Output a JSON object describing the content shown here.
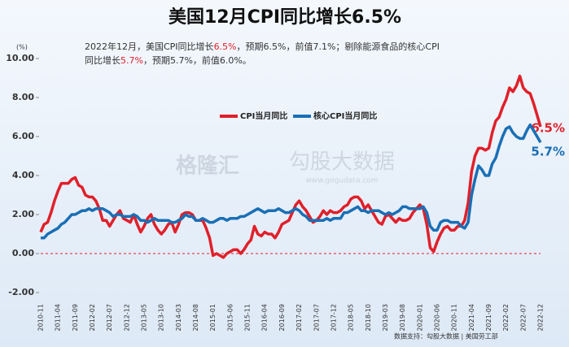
{
  "chart_data": {
    "type": "line",
    "title": "美国12月CPI同比增长6.5%",
    "annotation": [
      [
        {
          "text": "2022年12月，美国CPI同比增长"
        },
        {
          "text": "6.5%",
          "color": "#e0202a"
        },
        {
          "text": "，预期6.5%，前值7.1%；剔除能源食品的核心CPI"
        }
      ],
      [
        {
          "text": "同比增长"
        },
        {
          "text": "5.7%",
          "color": "#e0202a"
        },
        {
          "text": "，预期5.7%，前值6.0%。"
        }
      ]
    ],
    "y_unit": "(%)",
    "source": "数据支持：勾股大数据 | 美国劳工部",
    "watermarks": [
      "格隆汇",
      "勾股大数据",
      "www.gogudata.com"
    ],
    "categories": [
      "2010-11",
      null,
      null,
      null,
      null,
      "2011-04",
      null,
      null,
      null,
      null,
      "2011-09",
      null,
      null,
      null,
      null,
      "2012-02",
      null,
      null,
      null,
      null,
      "2012-07",
      null,
      null,
      null,
      null,
      "2012-12",
      null,
      null,
      null,
      null,
      "2013-05",
      null,
      null,
      null,
      null,
      "2013-10",
      null,
      null,
      null,
      null,
      "2014-03",
      null,
      null,
      null,
      null,
      "2014-08",
      null,
      null,
      null,
      null,
      "2015-01",
      null,
      null,
      null,
      null,
      "2015-06",
      null,
      null,
      null,
      null,
      "2015-11",
      null,
      null,
      null,
      null,
      "2016-04",
      null,
      null,
      null,
      null,
      "2016-09",
      null,
      null,
      null,
      null,
      "2017-02",
      null,
      null,
      null,
      null,
      "2017-07",
      null,
      null,
      null,
      null,
      "2017-12",
      null,
      null,
      null,
      null,
      "2018-05",
      null,
      null,
      null,
      null,
      "2018-10",
      null,
      null,
      null,
      null,
      "2019-03",
      null,
      null,
      null,
      null,
      "2019-08",
      null,
      null,
      null,
      null,
      "2020-01",
      null,
      null,
      null,
      null,
      "2020-06",
      null,
      null,
      null,
      null,
      "2020-11",
      null,
      null,
      null,
      null,
      "2021-04",
      null,
      null,
      null,
      null,
      "2021-09",
      null,
      null,
      null,
      null,
      "2022-02",
      null,
      null,
      null,
      null,
      "2022-07",
      null,
      null,
      null,
      null,
      "2022-12"
    ],
    "series": [
      {
        "name": "CPI当月同比",
        "color": "#e0202a",
        "end_label": "6.5%",
        "values": [
          1.1,
          1.5,
          1.6,
          2.1,
          2.7,
          3.2,
          3.6,
          3.6,
          3.6,
          3.8,
          3.9,
          3.5,
          3.4,
          3.0,
          2.9,
          2.9,
          2.7,
          2.3,
          1.7,
          1.7,
          1.4,
          1.7,
          2.0,
          2.2,
          1.8,
          1.7,
          1.6,
          2.0,
          1.5,
          1.1,
          1.4,
          1.8,
          2.0,
          1.5,
          1.2,
          1.0,
          1.2,
          1.5,
          1.6,
          1.1,
          1.5,
          2.0,
          2.1,
          2.1,
          2.0,
          1.7,
          1.7,
          1.7,
          1.3,
          0.8,
          -0.1,
          0.0,
          -0.1,
          -0.2,
          0.0,
          0.1,
          0.2,
          0.2,
          0.0,
          0.2,
          0.5,
          0.7,
          1.4,
          1.0,
          0.9,
          1.1,
          1.0,
          1.0,
          0.8,
          1.1,
          1.5,
          1.6,
          1.7,
          2.1,
          2.5,
          2.7,
          2.4,
          2.2,
          1.9,
          1.6,
          1.7,
          1.9,
          2.2,
          2.0,
          2.2,
          2.1,
          2.1,
          2.2,
          2.4,
          2.5,
          2.8,
          2.9,
          2.9,
          2.7,
          2.3,
          2.5,
          2.2,
          1.9,
          1.6,
          1.5,
          1.9,
          2.0,
          1.8,
          1.6,
          1.8,
          1.7,
          1.7,
          1.8,
          2.1,
          2.3,
          2.5,
          2.3,
          1.5,
          0.3,
          0.1,
          0.6,
          1.0,
          1.3,
          1.4,
          1.2,
          1.2,
          1.4,
          1.4,
          1.7,
          2.6,
          4.2,
          5.0,
          5.4,
          5.4,
          5.3,
          5.4,
          6.2,
          6.8,
          7.0,
          7.5,
          7.9,
          8.5,
          8.3,
          8.6,
          9.1,
          8.5,
          8.3,
          8.2,
          7.7,
          7.1,
          6.5
        ]
      },
      {
        "name": "核心CPI当月同比",
        "color": "#1a6fb5",
        "end_label": "5.7%",
        "values": [
          0.8,
          0.8,
          1.0,
          1.1,
          1.2,
          1.3,
          1.5,
          1.6,
          1.8,
          2.0,
          2.0,
          2.1,
          2.2,
          2.2,
          2.3,
          2.2,
          2.3,
          2.3,
          2.3,
          2.2,
          2.1,
          1.9,
          2.0,
          2.0,
          1.9,
          1.9,
          1.9,
          2.0,
          1.9,
          1.7,
          1.7,
          1.6,
          1.7,
          1.8,
          1.7,
          1.7,
          1.7,
          1.7,
          1.6,
          1.6,
          1.7,
          1.8,
          2.0,
          1.9,
          1.9,
          1.7,
          1.7,
          1.8,
          1.7,
          1.6,
          1.6,
          1.7,
          1.8,
          1.8,
          1.7,
          1.8,
          1.8,
          1.8,
          1.9,
          1.9,
          2.0,
          2.1,
          2.2,
          2.3,
          2.2,
          2.1,
          2.2,
          2.2,
          2.2,
          2.3,
          2.2,
          2.1,
          2.1,
          2.2,
          2.3,
          2.2,
          2.0,
          1.9,
          1.7,
          1.7,
          1.7,
          1.7,
          1.7,
          1.8,
          1.7,
          1.8,
          1.8,
          1.8,
          2.1,
          2.1,
          2.2,
          2.3,
          2.4,
          2.2,
          2.2,
          2.1,
          2.2,
          2.2,
          2.2,
          2.1,
          2.0,
          2.1,
          2.0,
          2.1,
          2.2,
          2.4,
          2.4,
          2.3,
          2.3,
          2.3,
          2.3,
          2.4,
          2.1,
          1.4,
          1.2,
          1.2,
          1.6,
          1.7,
          1.7,
          1.6,
          1.6,
          1.6,
          1.4,
          1.3,
          1.6,
          3.0,
          3.8,
          4.5,
          4.3,
          4.0,
          4.0,
          4.6,
          4.9,
          5.5,
          6.0,
          6.4,
          6.5,
          6.2,
          6.0,
          5.9,
          5.9,
          6.3,
          6.6,
          6.3,
          6.0,
          5.7
        ]
      }
    ],
    "ylim": [
      -2,
      10
    ],
    "yticks": [
      {
        "value": -2,
        "label": "-2.00"
      },
      {
        "value": 0,
        "label": "0.00"
      },
      {
        "value": 2,
        "label": "2.00"
      },
      {
        "value": 4,
        "label": "4.00"
      },
      {
        "value": 6,
        "label": "6.00"
      },
      {
        "value": 8,
        "label": "8.00"
      },
      {
        "value": 10,
        "label": "10.00"
      }
    ],
    "zero_line": true
  }
}
